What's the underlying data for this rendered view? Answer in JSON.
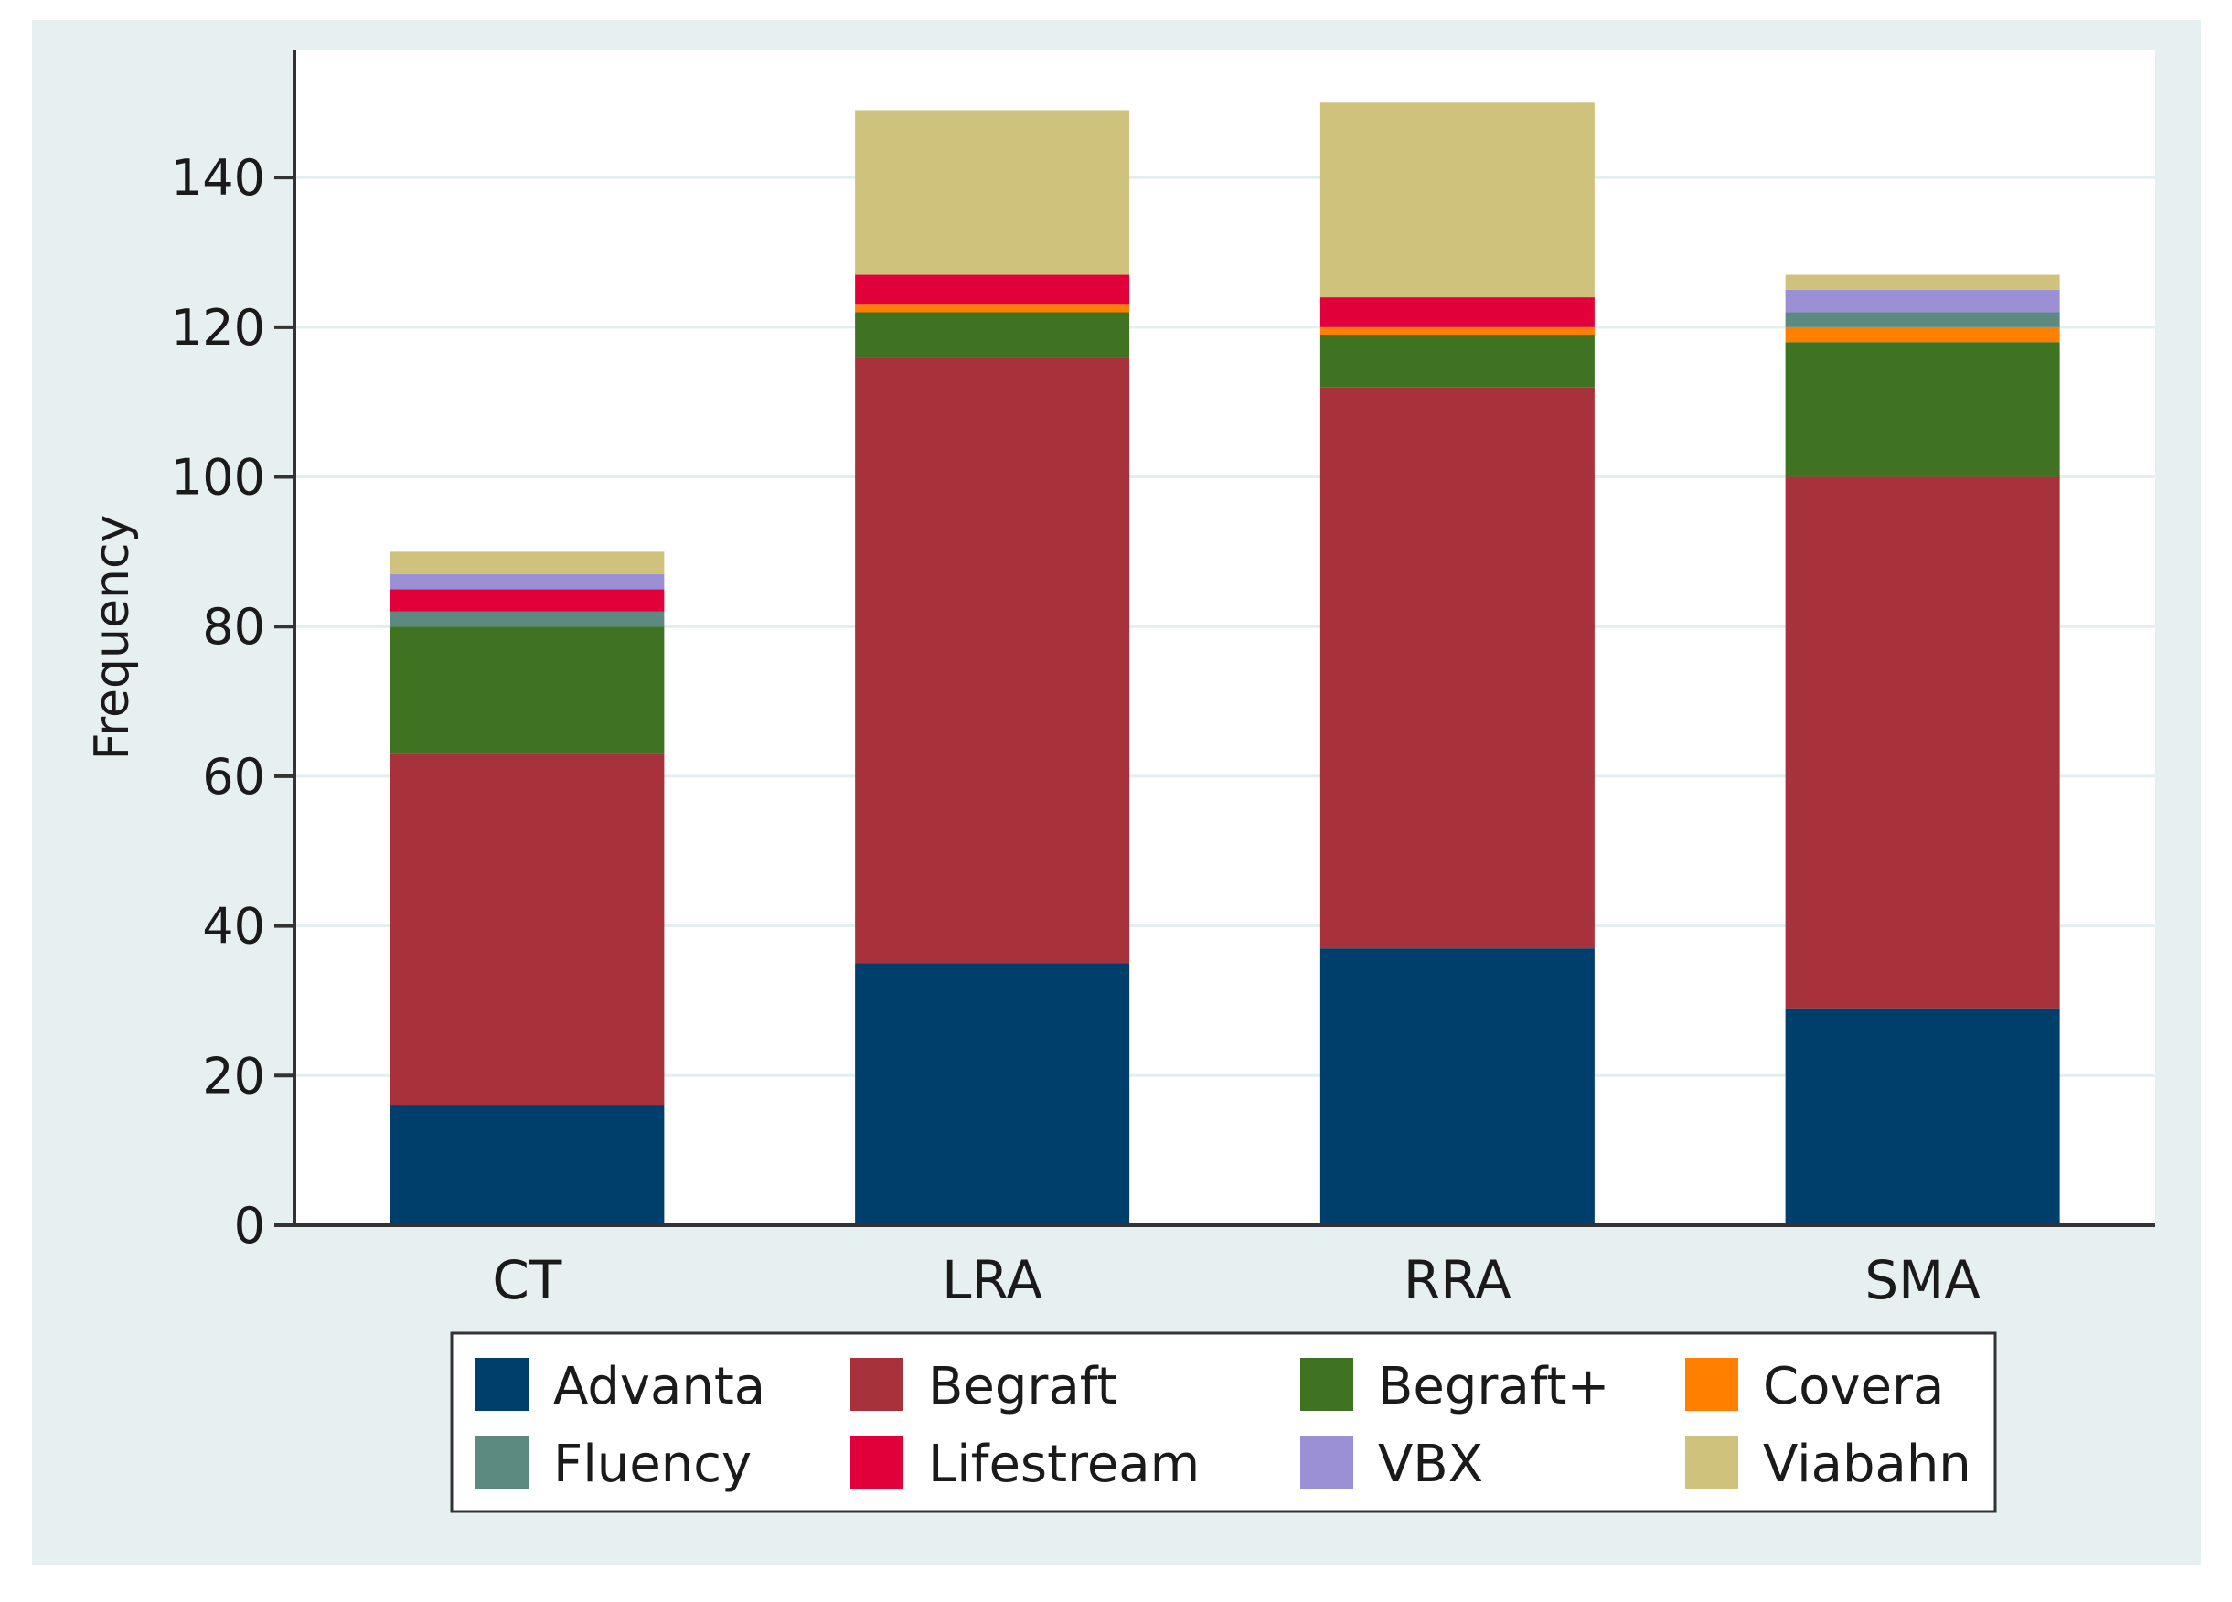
{
  "chart_data": {
    "type": "bar",
    "stacked": true,
    "title": "",
    "xlabel": "",
    "ylabel": "Frequency",
    "ylim": [
      0,
      157
    ],
    "yticks": [
      0,
      20,
      40,
      60,
      80,
      100,
      120,
      140
    ],
    "grid": true,
    "legend_position": "bottom",
    "categories": [
      "CT",
      "LRA",
      "RRA",
      "SMA"
    ],
    "series": [
      {
        "name": "Advanta",
        "color": "#003f6b",
        "values": [
          16,
          35,
          37,
          29
        ]
      },
      {
        "name": "Begraft",
        "color": "#a8323b",
        "values": [
          47,
          81,
          75,
          71
        ]
      },
      {
        "name": "Begraft+",
        "color": "#3f7321",
        "values": [
          17,
          6,
          7,
          18
        ]
      },
      {
        "name": "Covera",
        "color": "#ff7f00",
        "values": [
          0,
          1,
          1,
          2
        ]
      },
      {
        "name": "Fluency",
        "color": "#5c8a80",
        "values": [
          2,
          0,
          0,
          2
        ]
      },
      {
        "name": "Lifestream",
        "color": "#e10039",
        "values": [
          3,
          4,
          4,
          0
        ]
      },
      {
        "name": "VBX",
        "color": "#9b8fd6",
        "values": [
          2,
          0,
          0,
          3
        ]
      },
      {
        "name": "Viabahn",
        "color": "#cfc27c",
        "values": [
          3,
          22,
          26,
          2
        ]
      }
    ]
  }
}
